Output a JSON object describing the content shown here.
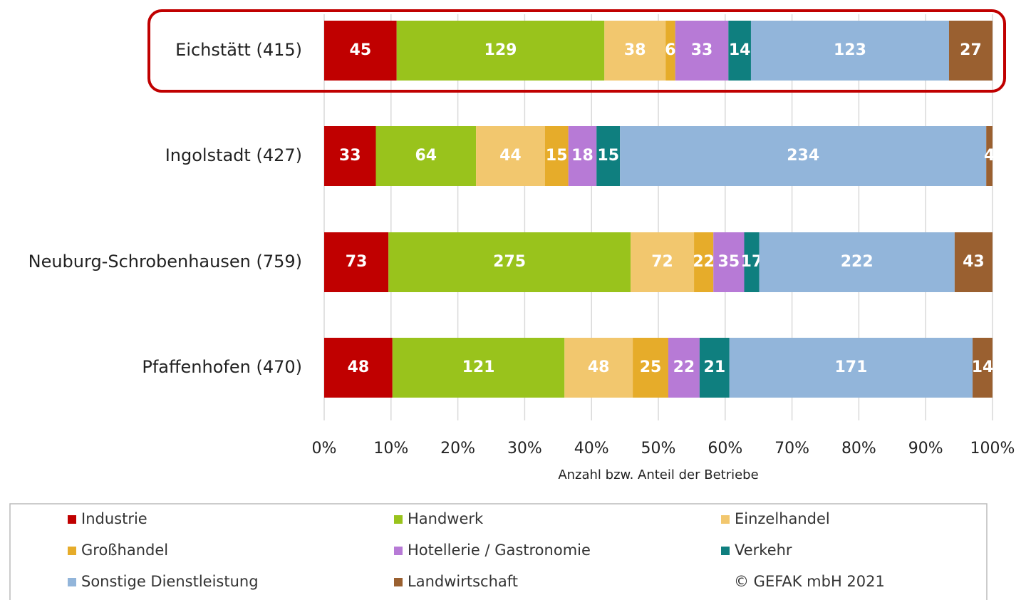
{
  "chart_data": {
    "type": "bar",
    "orientation": "horizontal",
    "stack": "percent",
    "categories": [
      "Eichstätt (415)",
      "Ingolstadt (427)",
      "Neuburg-Schrobenhausen (759)",
      "Pfaffenhofen (470)"
    ],
    "series": [
      {
        "name": "Industrie",
        "color": "#c00000",
        "values": [
          45,
          33,
          73,
          48
        ]
      },
      {
        "name": "Handwerk",
        "color": "#99c31c",
        "values": [
          129,
          64,
          275,
          121
        ]
      },
      {
        "name": "Einzelhandel",
        "color": "#f2c76e",
        "values": [
          38,
          44,
          72,
          48
        ]
      },
      {
        "name": "Großhandel",
        "color": "#e6ac2a",
        "values": [
          6,
          15,
          22,
          25
        ]
      },
      {
        "name": "Hotellerie / Gastronomie",
        "color": "#b77ad6",
        "values": [
          33,
          18,
          35,
          22
        ]
      },
      {
        "name": "Verkehr",
        "color": "#0f7f7f",
        "values": [
          14,
          15,
          17,
          21
        ]
      },
      {
        "name": "Sonstige Dienstleistung",
        "color": "#92b5da",
        "values": [
          123,
          234,
          222,
          171
        ]
      },
      {
        "name": "Landwirtschaft",
        "color": "#9a6030",
        "values": [
          27,
          4,
          43,
          14
        ]
      }
    ],
    "xlim": [
      0,
      100
    ],
    "xticks": [
      {
        "value": 0,
        "label": "0%"
      },
      {
        "value": 10,
        "label": "10%"
      },
      {
        "value": 20,
        "label": "20%"
      },
      {
        "value": 30,
        "label": "30%"
      },
      {
        "value": 40,
        "label": "40%"
      },
      {
        "value": 50,
        "label": "50%"
      },
      {
        "value": 60,
        "label": "60%"
      },
      {
        "value": 70,
        "label": "70%"
      },
      {
        "value": 80,
        "label": "80%"
      },
      {
        "value": 90,
        "label": "90%"
      },
      {
        "value": 100,
        "label": "100%"
      }
    ],
    "xlabel": "Anzahl bzw. Anteil der Betriebe",
    "grid": true,
    "legend": "bottom",
    "source": "© GEFAK mbH 2021"
  }
}
